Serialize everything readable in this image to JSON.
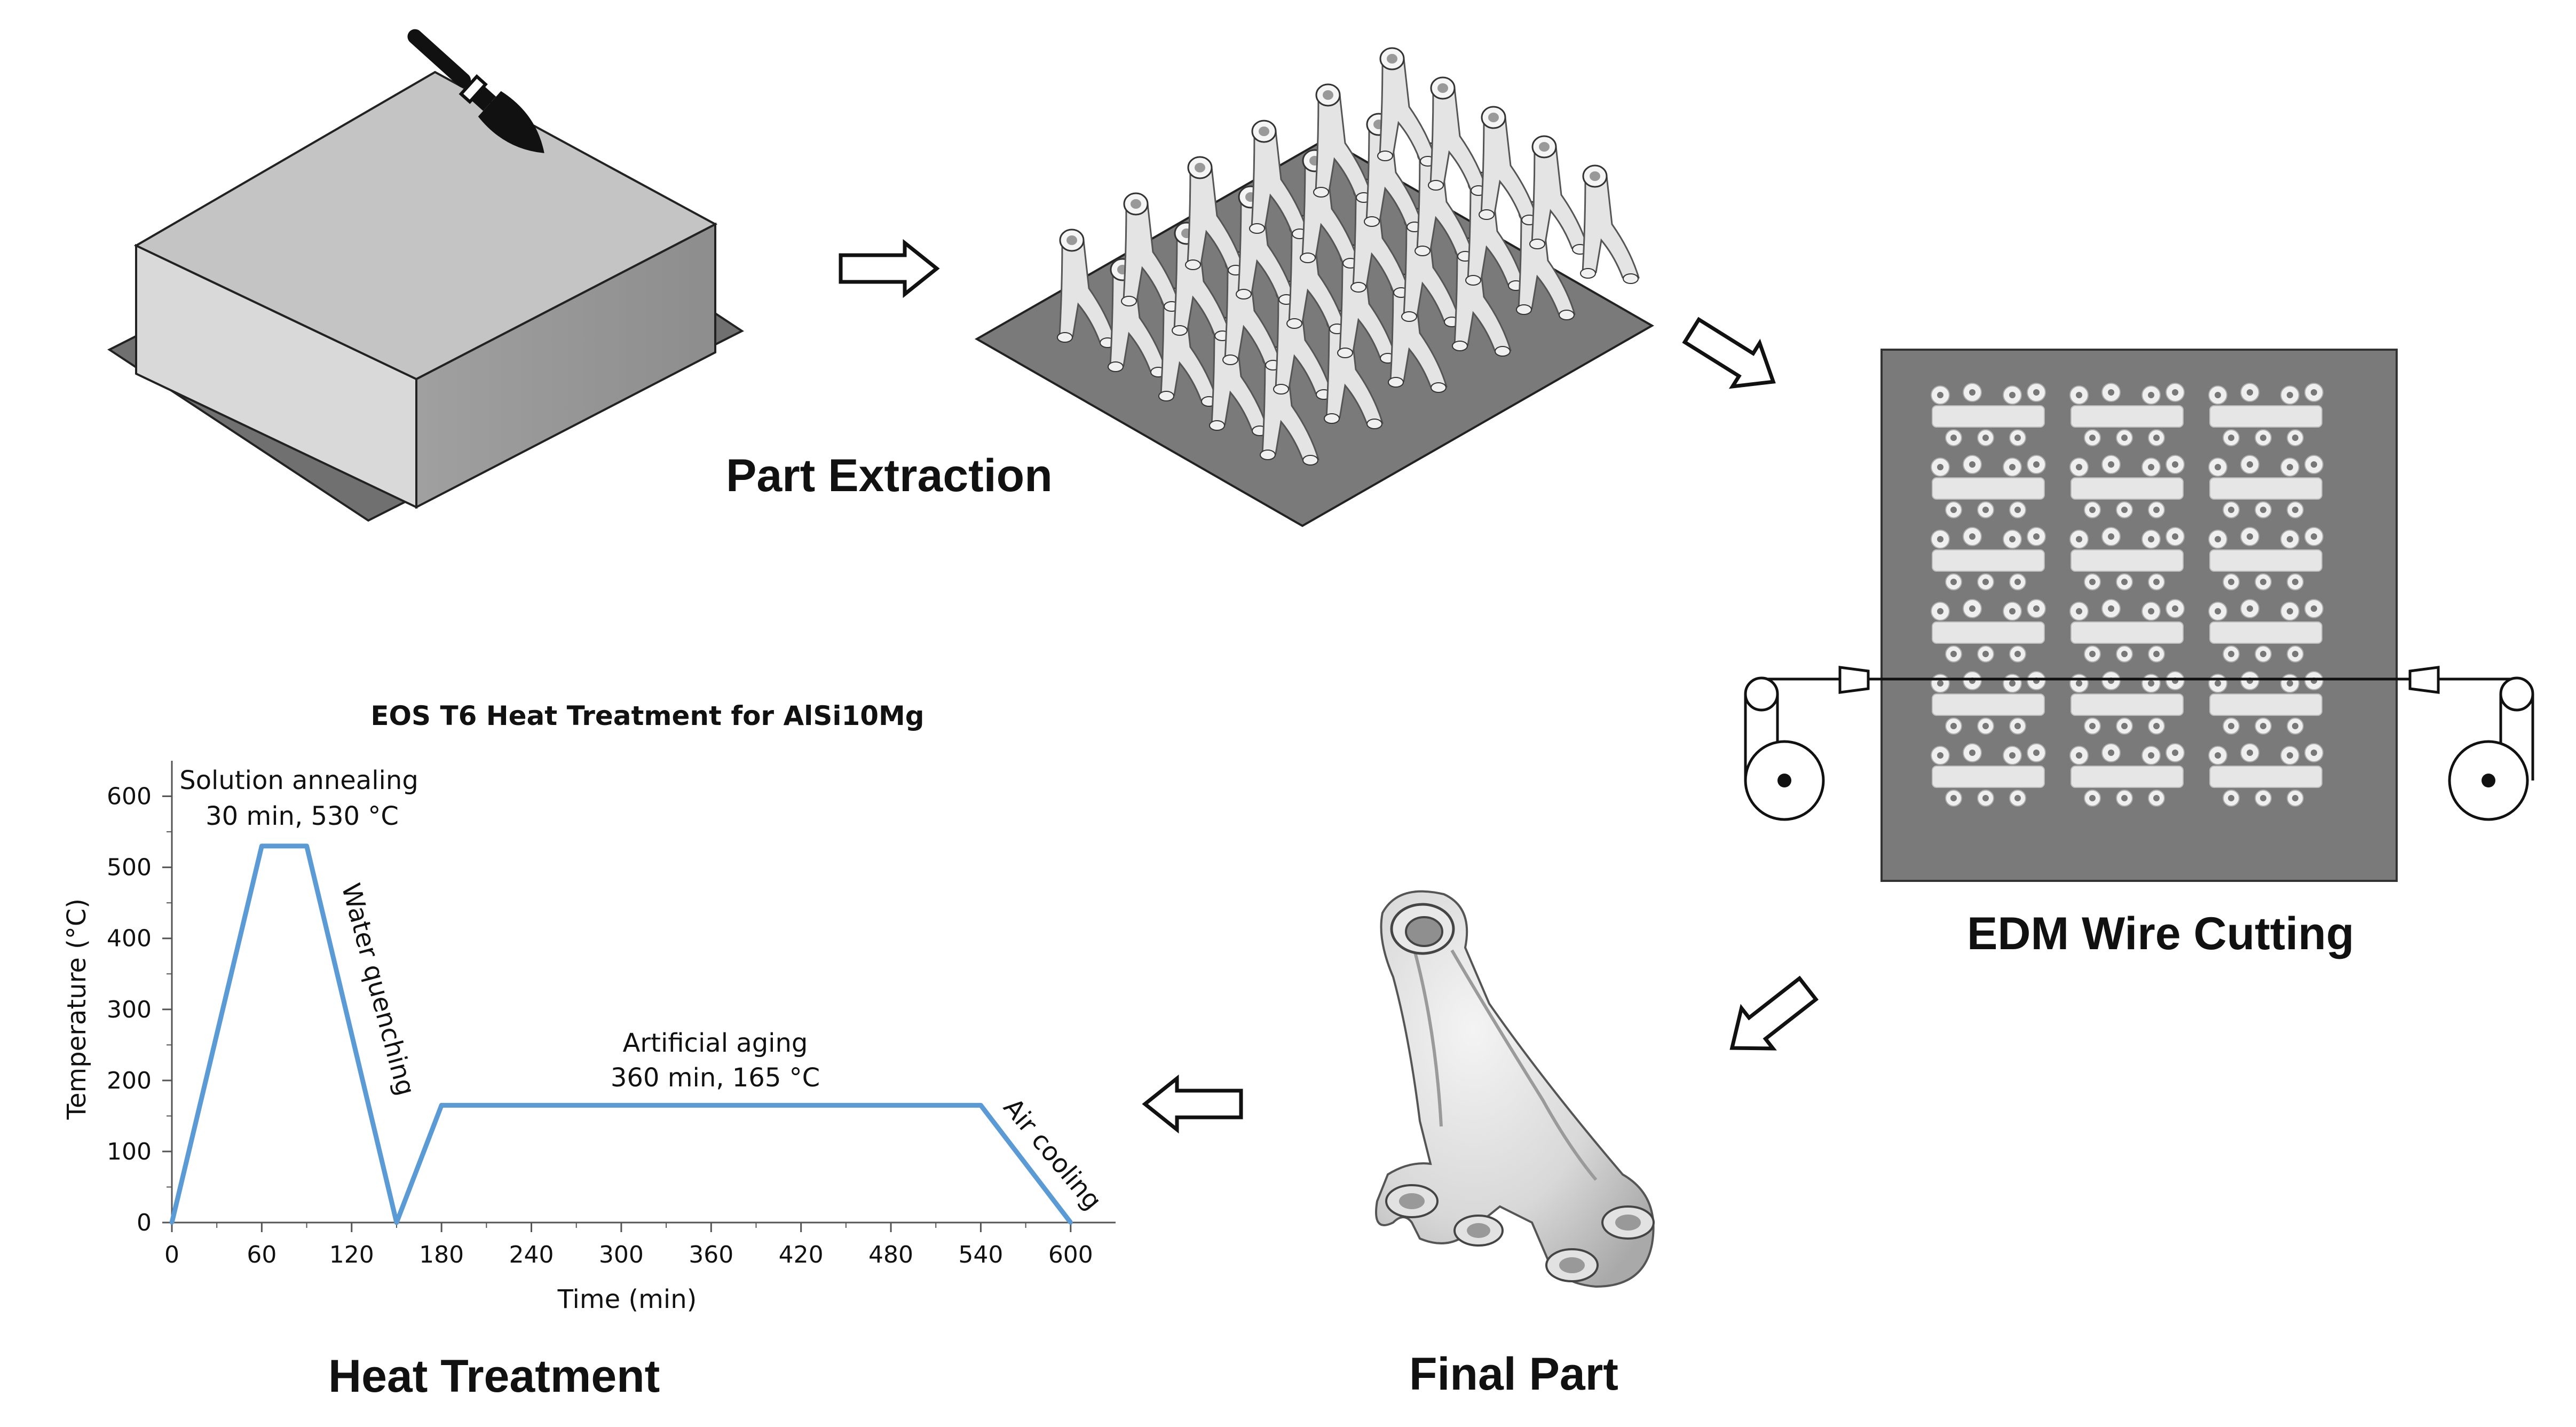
{
  "stages": {
    "part_extraction": "Part Extraction",
    "edm_wire_cutting": "EDM Wire Cutting",
    "final_part": "Final Part",
    "heat_treatment": "Heat Treatment"
  },
  "icons": [
    "paintbrush-icon",
    "arrow-right-icon",
    "arrow-down-right-icon",
    "arrow-down-left-icon",
    "arrow-left-icon",
    "wire-pulley-icon"
  ],
  "chart_data": {
    "type": "line",
    "title": "EOS T6 Heat Treatment for AlSi10Mg",
    "xlabel": "Time (min)",
    "ylabel": "Temperature (°C)",
    "x": [
      0,
      60,
      90,
      150,
      180,
      540,
      600
    ],
    "series": [
      {
        "values": [
          0,
          530,
          530,
          0,
          165,
          165,
          0
        ]
      }
    ],
    "xlim": [
      0,
      630
    ],
    "ylim": [
      0,
      650
    ],
    "xticks": [
      "0",
      "60",
      "120",
      "180",
      "240",
      "300",
      "360",
      "420",
      "480",
      "540",
      "600"
    ],
    "yticks": [
      "0",
      "100",
      "200",
      "300",
      "400",
      "500",
      "600"
    ],
    "grid": false,
    "line_color": "#5b9bd5",
    "annotations": {
      "solution_line1": "Solution annealing",
      "solution_line2": "30 min, 530 °C",
      "water_quenching": "Water quenching",
      "aging_line1": "Artificial aging",
      "aging_line2": "360 min, 165 °C",
      "air_cooling": "Air cooling"
    }
  }
}
